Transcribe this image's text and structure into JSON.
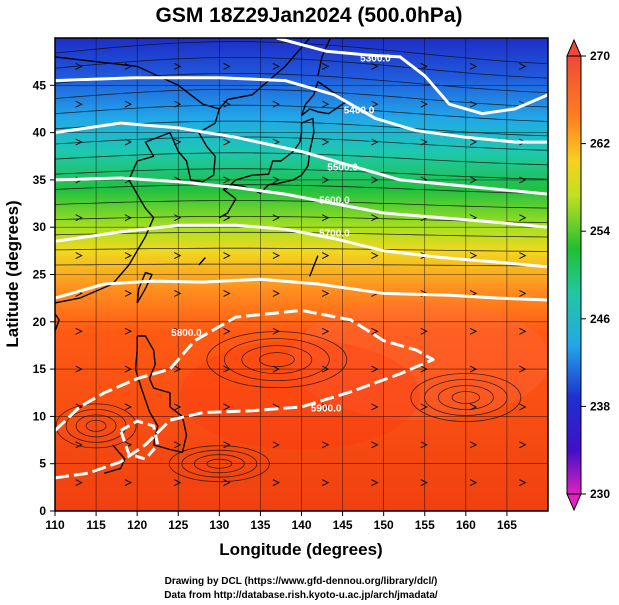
{
  "title": "GSM 18Z29Jan2024 (500.0hPa)",
  "xlabel": "Longitude (degrees)",
  "ylabel": "Latitude  (degrees)",
  "credits": [
    "Drawing by DCL (https://www.gfd-dennou.org/library/dcl/)",
    "Data from http://database.rish.kyoto-u.ac.jp/arch/jmadata/"
  ],
  "colors": {
    "cold": "#2030c0",
    "cool": "#22a8e8",
    "mid": "#20c040",
    "warm": "#e8e020",
    "hot": "#ff5010",
    "contour": "#ffffff",
    "streamline": "#111111",
    "coastline": "#000000"
  },
  "chart_data": {
    "type": "heatmap",
    "x_range": [
      110,
      170
    ],
    "y_range": [
      0,
      50
    ],
    "x_ticks": [
      "110",
      "115",
      "120",
      "125",
      "130",
      "135",
      "140",
      "145",
      "150",
      "155",
      "160",
      "165"
    ],
    "y_ticks": [
      "0",
      "5",
      "10",
      "15",
      "20",
      "25",
      "30",
      "35",
      "40",
      "45"
    ],
    "colorbar": {
      "min": 230,
      "max": 270,
      "ticks": [
        "230",
        "238",
        "246",
        "254",
        "262",
        "270"
      ]
    },
    "contour_labels": [
      {
        "text": "5300.0",
        "lon": 149,
        "lat": 47.5
      },
      {
        "text": "5400.0",
        "lon": 147,
        "lat": 42
      },
      {
        "text": "5500.0",
        "lon": 145,
        "lat": 36
      },
      {
        "text": "5600.0",
        "lon": 144,
        "lat": 32.5
      },
      {
        "text": "5700.0",
        "lon": 144,
        "lat": 29
      },
      {
        "text": "5800.0",
        "lon": 126,
        "lat": 18.5
      },
      {
        "text": "5900.0",
        "lon": 143,
        "lat": 10.5
      }
    ],
    "contours": [
      {
        "value": 5300,
        "lat_by_lon": [
          [
            137,
            50
          ],
          [
            143,
            48.6
          ],
          [
            148,
            48.2
          ],
          [
            152,
            48
          ],
          [
            155,
            46
          ],
          [
            158,
            43
          ],
          [
            162,
            42
          ],
          [
            166,
            42.5
          ],
          [
            170,
            44
          ]
        ],
        "dashed": false
      },
      {
        "value": 5400,
        "lat_by_lon": [
          [
            110,
            45.5
          ],
          [
            120,
            45.8
          ],
          [
            130,
            45.8
          ],
          [
            138,
            45.5
          ],
          [
            144,
            44
          ],
          [
            149,
            41.5
          ],
          [
            154,
            40.2
          ],
          [
            160,
            39.5
          ],
          [
            166,
            39
          ],
          [
            170,
            39
          ]
        ],
        "dashed": false
      },
      {
        "value": 5500,
        "lat_by_lon": [
          [
            110,
            40
          ],
          [
            118,
            41
          ],
          [
            125,
            40.5
          ],
          [
            132,
            39.5
          ],
          [
            140,
            38
          ],
          [
            146,
            36.5
          ],
          [
            152,
            35
          ],
          [
            158,
            34.5
          ],
          [
            164,
            34
          ],
          [
            170,
            33.5
          ]
        ],
        "dashed": false
      },
      {
        "value": 5600,
        "lat_by_lon": [
          [
            110,
            35
          ],
          [
            118,
            35.2
          ],
          [
            125,
            34.8
          ],
          [
            132,
            34.2
          ],
          [
            138,
            33.5
          ],
          [
            144,
            32.5
          ],
          [
            150,
            31.5
          ],
          [
            157,
            31
          ],
          [
            164,
            30.5
          ],
          [
            170,
            30
          ]
        ],
        "dashed": false
      },
      {
        "value": 5700,
        "lat_by_lon": [
          [
            110,
            28.5
          ],
          [
            118,
            29.5
          ],
          [
            125,
            30.2
          ],
          [
            132,
            30.2
          ],
          [
            138,
            29.8
          ],
          [
            144,
            28.8
          ],
          [
            150,
            27.5
          ],
          [
            157,
            26.8
          ],
          [
            164,
            26.3
          ],
          [
            170,
            25.8
          ]
        ],
        "dashed": false
      },
      {
        "value": 5800,
        "lat_by_lon": [
          [
            110,
            22.5
          ],
          [
            116,
            24
          ],
          [
            122,
            24.3
          ],
          [
            128,
            24.2
          ],
          [
            135,
            24.5
          ],
          [
            142,
            24
          ],
          [
            150,
            23
          ],
          [
            158,
            22.8
          ],
          [
            164,
            22.5
          ],
          [
            170,
            22.3
          ]
        ],
        "dashed": false
      }
    ]
  }
}
